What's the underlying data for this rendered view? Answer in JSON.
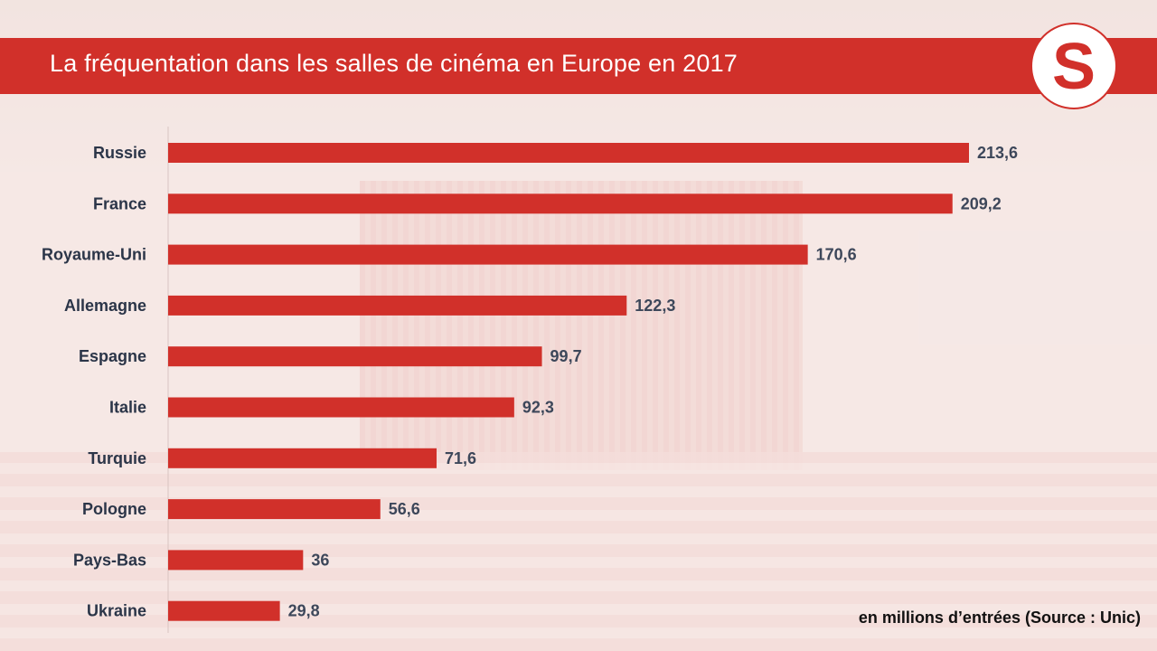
{
  "header": {
    "title": "La fréquentation dans les salles de cinéma en Europe en 2017",
    "logo_text": "S"
  },
  "note": "en millions d’entrées (Source : Unic)",
  "colors": {
    "accent": "#d1302a",
    "label": "#2b3548",
    "value": "#3d475a"
  },
  "chart_data": {
    "type": "bar",
    "orientation": "horizontal",
    "title": "La fréquentation dans les salles de cinéma en Europe en 2017",
    "xlabel": "",
    "ylabel": "",
    "unit": "en millions d’entrées",
    "categories": [
      "Russie",
      "France",
      "Royaume-Uni",
      "Allemagne",
      "Espagne",
      "Italie",
      "Turquie",
      "Pologne",
      "Pays-Bas",
      "Ukraine"
    ],
    "values": [
      213.6,
      209.2,
      170.6,
      122.3,
      99.7,
      92.3,
      71.6,
      56.6,
      36,
      29.8
    ],
    "value_labels": [
      "213,6",
      "209,2",
      "170,6",
      "122,3",
      "99,7",
      "92,3",
      "71,6",
      "56,6",
      "36",
      "29,8"
    ],
    "xlim": [
      0,
      213.6
    ],
    "grid": false
  }
}
